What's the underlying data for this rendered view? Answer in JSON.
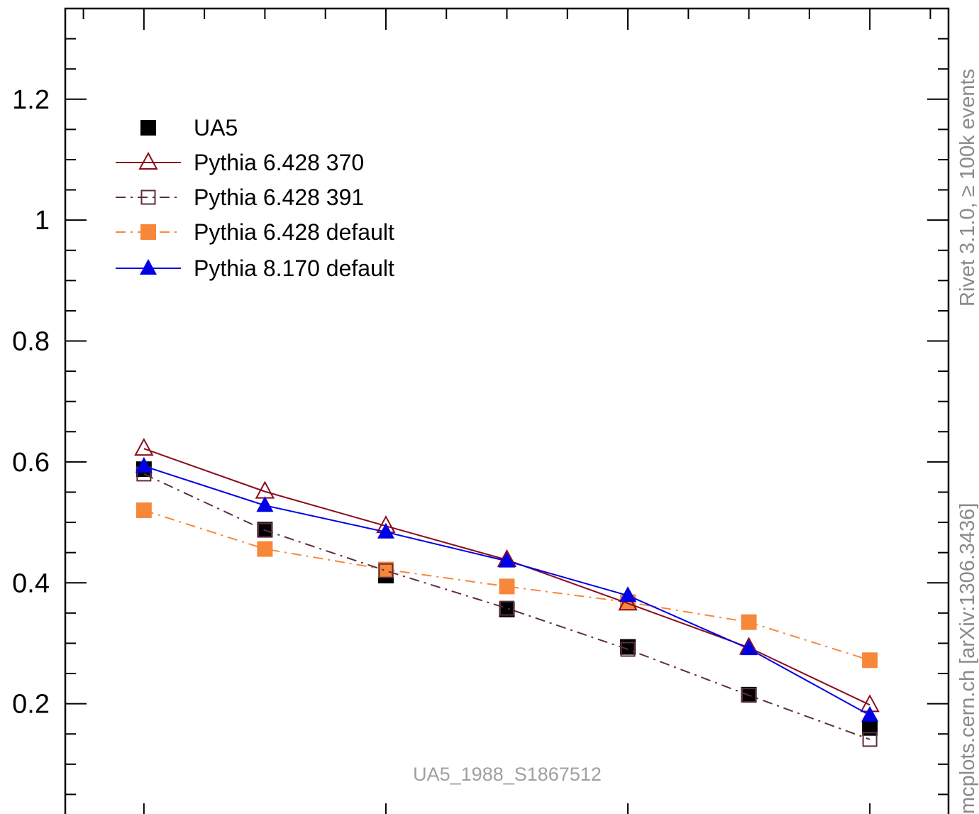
{
  "chart_data": {
    "type": "line",
    "x": [
      1,
      2,
      3,
      4,
      5,
      6,
      7
    ],
    "ylim": [
      0,
      1.35
    ],
    "xlim": [
      0.35,
      7.65
    ],
    "yticks_major": [
      0.2,
      0.4,
      0.6,
      0.8,
      1,
      1.2
    ],
    "ytick_labels": [
      "0.2",
      "0.4",
      "0.6",
      "0.8",
      "1",
      "1.2"
    ],
    "grid": false,
    "legend_position": "top-left",
    "series": [
      {
        "name": "UA5",
        "style": "markers",
        "marker": "filled-square",
        "color": "#000000",
        "values": [
          0.588,
          0.488,
          0.412,
          0.356,
          0.294,
          0.215,
          0.16
        ]
      },
      {
        "name": "Pythia 6.428 370",
        "style": "solid",
        "marker": "open-triangle",
        "color": "#8b0c1c",
        "values": [
          0.622,
          0.551,
          0.494,
          0.438,
          0.366,
          0.293,
          0.198
        ]
      },
      {
        "name": "Pythia 6.428 391",
        "style": "dash-dot",
        "marker": "open-square",
        "color": "#5e2e3e",
        "values": [
          0.58,
          0.487,
          0.42,
          0.358,
          0.29,
          0.214,
          0.141
        ]
      },
      {
        "name": "Pythia 6.428 default",
        "style": "dash-dot",
        "marker": "filled-square",
        "color": "#f7883a",
        "values": [
          0.52,
          0.456,
          0.422,
          0.394,
          0.368,
          0.335,
          0.272
        ]
      },
      {
        "name": "Pythia 8.170 default",
        "style": "solid",
        "marker": "filled-triangle",
        "color": "#0000e6",
        "values": [
          0.593,
          0.528,
          0.484,
          0.436,
          0.379,
          0.291,
          0.181
        ]
      }
    ],
    "watermark": "UA5_1988_S1867512",
    "side_text_top": "Rivet 3.1.0, ≥ 100k events",
    "side_text_bottom": "mcplots.cern.ch [arXiv:1306.3436]"
  }
}
